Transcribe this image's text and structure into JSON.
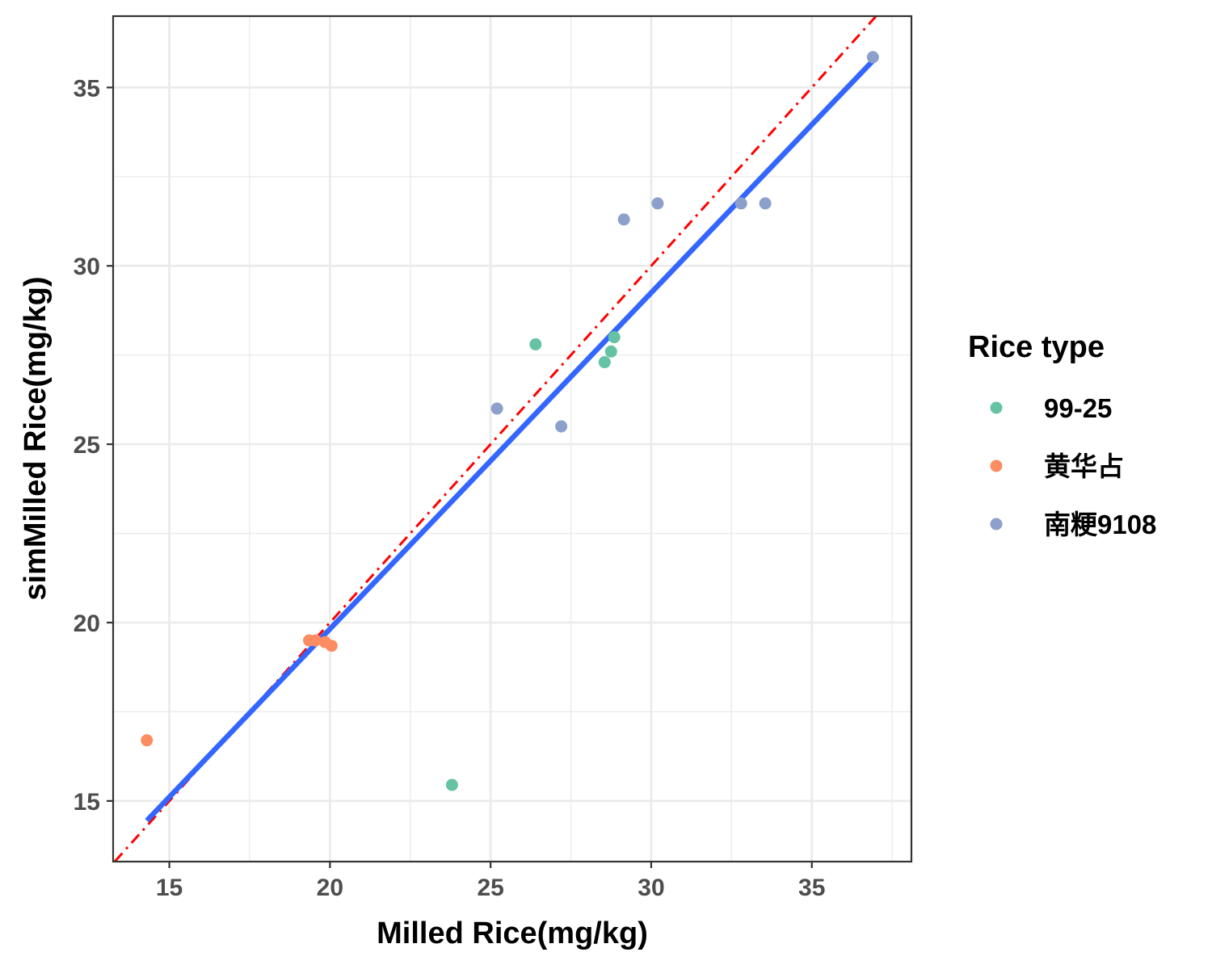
{
  "chart_data": {
    "type": "scatter",
    "title": "",
    "xlabel": "Milled Rice(mg/kg)",
    "ylabel": "simMilled Rice(mg/kg)",
    "xlim": [
      13.25,
      38.1
    ],
    "ylim": [
      13.3,
      37.0
    ],
    "x_ticks": [
      15,
      20,
      25,
      30,
      35
    ],
    "y_ticks": [
      15,
      20,
      25,
      30,
      35
    ],
    "x_tick_labels": [
      "15",
      "20",
      "25",
      "30",
      "35"
    ],
    "y_tick_labels": [
      "15",
      "20",
      "25",
      "30",
      "35"
    ],
    "grid": true,
    "legend": {
      "title": "Rice type",
      "position": "right",
      "entries": [
        "99-25",
        "黄华占",
        "南粳9108"
      ]
    },
    "series": [
      {
        "name": "99-25",
        "color": "#66C2A5",
        "points": [
          [
            23.8,
            15.45
          ],
          [
            26.4,
            27.8
          ],
          [
            28.55,
            27.3
          ],
          [
            28.75,
            27.6
          ],
          [
            28.85,
            28.0
          ]
        ]
      },
      {
        "name": "黄华占",
        "color": "#FC8D62",
        "points": [
          [
            14.3,
            16.7
          ],
          [
            19.35,
            19.5
          ],
          [
            19.55,
            19.5
          ],
          [
            19.85,
            19.45
          ],
          [
            20.05,
            19.35
          ]
        ]
      },
      {
        "name": "南粳9108",
        "color": "#8DA0CB",
        "points": [
          [
            25.2,
            26.0
          ],
          [
            27.2,
            25.5
          ],
          [
            29.15,
            31.3
          ],
          [
            30.2,
            31.75
          ],
          [
            32.8,
            31.75
          ],
          [
            33.55,
            31.75
          ],
          [
            36.9,
            35.85
          ]
        ]
      }
    ],
    "reference_line": {
      "style": "dashdot",
      "color": "#FF0000",
      "slope": 1,
      "intercept": 0
    },
    "fit_line": {
      "color": "#3366FF",
      "x": [
        14.3,
        36.9
      ],
      "y": [
        14.45,
        35.75
      ]
    }
  }
}
